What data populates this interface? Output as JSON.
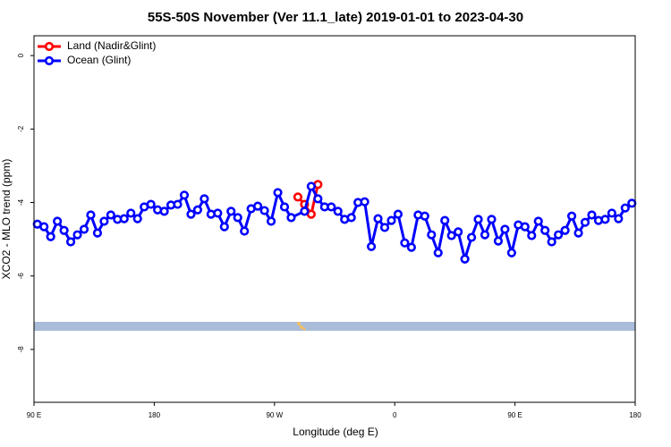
{
  "chart_data": {
    "type": "line",
    "title": "55S-50S November (Ver 11.1_late)   2019-01-01 to 2023-04-30",
    "x_label": "Longitude (deg E)",
    "y_label": "XCO2 - MLO trend (ppm)",
    "xlim": [
      90,
      540
    ],
    "ylim": [
      -9.44,
      0.54
    ],
    "xticks": [
      {
        "value": 90,
        "label": "90 E"
      },
      {
        "value": 180,
        "label": "180"
      },
      {
        "value": 270,
        "label": "90 W"
      },
      {
        "value": 360,
        "label": "0"
      },
      {
        "value": 450,
        "label": "90 E"
      },
      {
        "value": 540,
        "label": "180"
      }
    ],
    "yticks": [
      0,
      -2,
      -4,
      -6,
      -8
    ],
    "legend": "top-left",
    "series": [
      {
        "name": "Land (Nadir&Glint)",
        "color": "#ff0000",
        "x": [
          287.5,
          292.5,
          297.5,
          302.5
        ],
        "values": [
          -3.85,
          -4.05,
          -4.32,
          -3.51
        ]
      },
      {
        "name": "Ocean (Glint)",
        "color": "#0000ff",
        "x": [
          92.5,
          97.5,
          102.5,
          107.5,
          112.5,
          117.5,
          122.5,
          127.5,
          132.5,
          137.5,
          142.5,
          147.5,
          152.5,
          157.5,
          162.5,
          167.5,
          172.5,
          177.5,
          182.5,
          187.5,
          192.5,
          197.5,
          202.5,
          207.5,
          212.5,
          217.5,
          222.5,
          227.5,
          232.5,
          237.5,
          242.5,
          247.5,
          252.5,
          257.5,
          262.5,
          267.5,
          272.5,
          277.5,
          282.5,
          292.5,
          297.5,
          302.5,
          307.5,
          312.5,
          317.5,
          322.5,
          327.5,
          332.5,
          337.5,
          342.5,
          347.5,
          352.5,
          357.5,
          362.5,
          367.5,
          372.5,
          377.5,
          382.5,
          387.5,
          392.5,
          397.5,
          402.5,
          407.5,
          412.5,
          417.5,
          422.5,
          427.5,
          432.5,
          437.5,
          442.5,
          447.5,
          452.5,
          457.5,
          462.5,
          467.5,
          472.5,
          477.5,
          482.5,
          487.5,
          492.5,
          497.5,
          502.5,
          507.5,
          512.5,
          517.5,
          522.5,
          527.5,
          532.5,
          537.5
        ],
        "values": [
          -4.59,
          -4.66,
          -4.93,
          -4.51,
          -4.76,
          -5.07,
          -4.88,
          -4.73,
          -4.34,
          -4.83,
          -4.51,
          -4.34,
          -4.46,
          -4.44,
          -4.29,
          -4.44,
          -4.12,
          -4.05,
          -4.2,
          -4.24,
          -4.07,
          -4.05,
          -3.8,
          -4.32,
          -4.2,
          -3.9,
          -4.32,
          -4.29,
          -4.66,
          -4.24,
          -4.41,
          -4.78,
          -4.17,
          -4.1,
          -4.22,
          -4.51,
          -3.73,
          -4.12,
          -4.41,
          -4.24,
          -3.56,
          -3.9,
          -4.12,
          -4.12,
          -4.24,
          -4.46,
          -4.41,
          -4.0,
          -3.98,
          -5.2,
          -4.44,
          -4.68,
          -4.49,
          -4.32,
          -5.1,
          -5.22,
          -4.34,
          -4.37,
          -4.88,
          -5.37,
          -4.49,
          -4.9,
          -4.8,
          -5.54,
          -4.95,
          -4.46,
          -4.88,
          -4.46,
          -5.05,
          -4.73,
          -5.37,
          -4.61,
          -4.66,
          -4.9,
          -4.51,
          -4.76,
          -5.07,
          -4.88,
          -4.76,
          -4.37,
          -4.83,
          -4.54,
          -4.34,
          -4.49,
          -4.46,
          -4.29,
          -4.44,
          -4.15,
          -4.02
        ]
      }
    ]
  }
}
